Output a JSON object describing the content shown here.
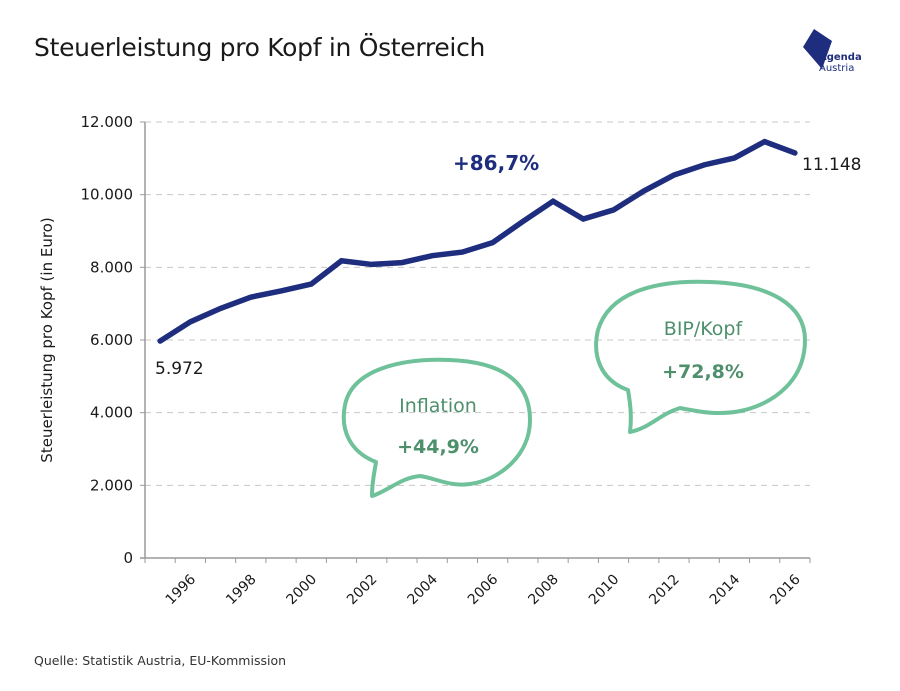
{
  "header": {
    "title": "Steuerleistung pro Kopf in Österreich",
    "logo": {
      "line1": "Agenda",
      "line2": "Austria",
      "icon": "agenda-austria-logo-icon",
      "color": "#1e2d7d"
    }
  },
  "footer": {
    "source": "Quelle: Statistik Austria, EU-Kommission"
  },
  "chart_data": {
    "type": "line",
    "title": "Steuerleistung pro Kopf in Österreich",
    "xlabel": "",
    "ylabel": "Steuerleistung pro Kopf (in Euro)",
    "ylim": [
      0,
      12000
    ],
    "yticks": [
      0,
      2000,
      4000,
      6000,
      8000,
      10000,
      12000
    ],
    "ytick_labels": [
      "0",
      "2.000",
      "4.000",
      "6.000",
      "8.000",
      "10.000",
      "12.000"
    ],
    "xticks_labeled": [
      "1996",
      "1998",
      "2000",
      "2002",
      "2004",
      "2006",
      "2008",
      "2010",
      "2012",
      "2014",
      "2016"
    ],
    "grid": true,
    "legend": "none",
    "x": [
      1995,
      1996,
      1997,
      1998,
      1999,
      2000,
      2001,
      2002,
      2003,
      2004,
      2005,
      2006,
      2007,
      2008,
      2009,
      2010,
      2011,
      2012,
      2013,
      2014,
      2015,
      2016
    ],
    "series": [
      {
        "name": "Steuerleistung pro Kopf",
        "color": "#1e2d7d",
        "values": [
          5972,
          6500,
          6870,
          7180,
          7350,
          7540,
          8180,
          8080,
          8130,
          8320,
          8420,
          8680,
          9260,
          9820,
          9330,
          9580,
          10100,
          10540,
          10820,
          11010,
          11460,
          11148
        ]
      }
    ],
    "data_labels": [
      {
        "year": 1995,
        "text": "5.972"
      },
      {
        "year": 2016,
        "text": "11.148"
      }
    ],
    "annotations": [
      {
        "id": "total-growth",
        "text": "+86,7%",
        "color": "#1e2d7d"
      },
      {
        "id": "inflation",
        "title": "Inflation",
        "value": "+44,9%",
        "color": "#6fc19a"
      },
      {
        "id": "bip-kopf",
        "title": "BIP/Kopf",
        "value": "+72,8%",
        "color": "#6fc19a"
      }
    ],
    "colors": {
      "grid": "#c8c8c8",
      "axis": "#9a9a9a",
      "bubble_text": "#4e8f6c"
    }
  }
}
